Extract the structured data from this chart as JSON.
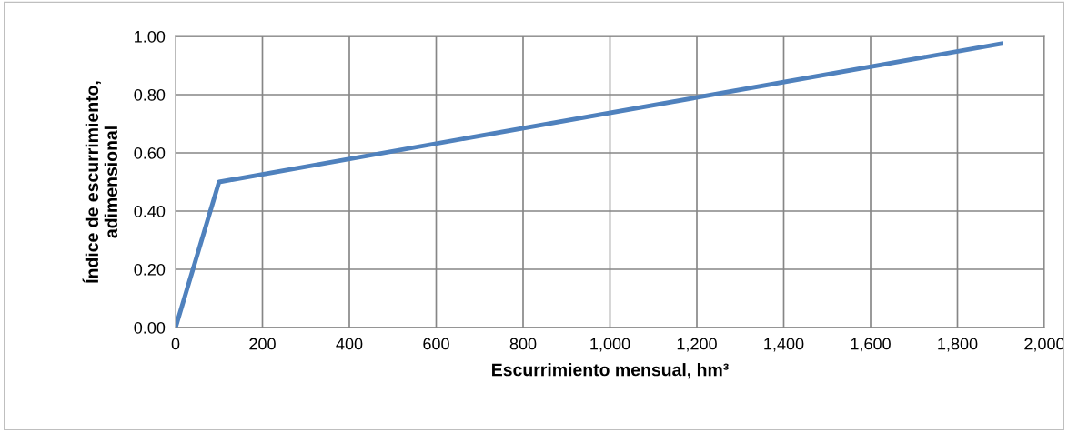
{
  "chart_data": {
    "type": "line",
    "xlabel": "Escurrimiento mensual, hm³",
    "ylabel": "Índice de escurrimiento,\nadimensional",
    "x": [
      0,
      100,
      1900
    ],
    "series": [
      {
        "color": "#4f81bd",
        "values": [
          0,
          0.5,
          0.975
        ]
      }
    ],
    "xlim": [
      0,
      2000
    ],
    "xticks": [
      {
        "value": 0,
        "label": "0"
      },
      {
        "value": 200,
        "label": "200"
      },
      {
        "value": 400,
        "label": "400"
      },
      {
        "value": 600,
        "label": "600"
      },
      {
        "value": 800,
        "label": "800"
      },
      {
        "value": 1000,
        "label": "1,000"
      },
      {
        "value": 1200,
        "label": "1,200"
      },
      {
        "value": 1400,
        "label": "1,400"
      },
      {
        "value": 1600,
        "label": "1,600"
      },
      {
        "value": 1800,
        "label": "1,800"
      },
      {
        "value": 2000,
        "label": "2,000"
      }
    ],
    "ylim": [
      0,
      1
    ],
    "yticks": [
      {
        "value": 0,
        "label": "0.00"
      },
      {
        "value": 0.2,
        "label": "0.20"
      },
      {
        "value": 0.4,
        "label": "0.40"
      },
      {
        "value": 0.6,
        "label": "0.60"
      },
      {
        "value": 0.8,
        "label": "0.80"
      },
      {
        "value": 1,
        "label": "1.00"
      }
    ],
    "grid": true,
    "legend": false,
    "marker": "none",
    "line_style": "solid"
  }
}
